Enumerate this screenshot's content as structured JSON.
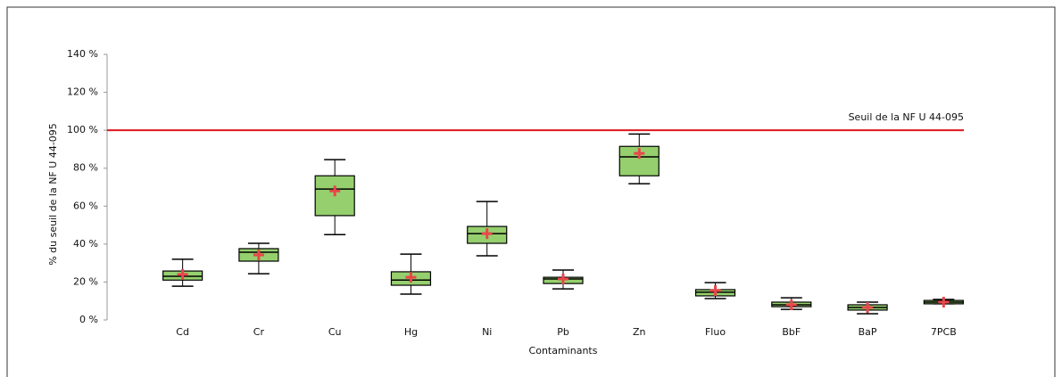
{
  "chart_data": {
    "type": "box",
    "y_label": "% du seuil de la NF U 44-095",
    "x_label": "Contaminants",
    "categories": [
      "Cd",
      "Cr",
      "Cu",
      "Hg",
      "Ni",
      "Pb",
      "Zn",
      "Fluo",
      "BbF",
      "BaP",
      "7PCB"
    ],
    "whisker_low": [
      17.8,
      24.4,
      45,
      13.6,
      33.8,
      16.4,
      71.8,
      11.3,
      5.6,
      3.3,
      8.5
    ],
    "q1": [
      21,
      31,
      55,
      18.3,
      40.4,
      19.2,
      76,
      12.7,
      7,
      5.2,
      8.5
    ],
    "median": [
      23,
      35.7,
      69,
      21,
      45.5,
      21.6,
      86,
      14.6,
      8,
      6.6,
      9.4
    ],
    "q3": [
      25.8,
      37.6,
      76,
      25.4,
      49.3,
      22.5,
      91.5,
      16,
      9.4,
      8,
      10.3
    ],
    "whisker_high": [
      32,
      40.4,
      84.5,
      34.7,
      62.4,
      26.3,
      98,
      19.7,
      11.7,
      9.4,
      10.8
    ],
    "mean": [
      24,
      34.3,
      68,
      22.5,
      45.5,
      21.6,
      87.8,
      15.5,
      8,
      6.6,
      9.4
    ],
    "box_color": "#95cf6e",
    "mean_color": "#e8474a",
    "threshold": {
      "value": 100,
      "label": "Seuil de la NF U 44-095",
      "color": "#e3141c"
    },
    "ylim": [
      0,
      140
    ],
    "yticks": [
      {
        "value": 0,
        "label": "0 %"
      },
      {
        "value": 20,
        "label": "20 %"
      },
      {
        "value": 40,
        "label": "40 %"
      },
      {
        "value": 60,
        "label": "60 %"
      },
      {
        "value": 80,
        "label": "80 %"
      },
      {
        "value": 100,
        "label": "100 %"
      },
      {
        "value": 120,
        "label": "120 %"
      },
      {
        "value": 140,
        "label": "140 %"
      }
    ]
  }
}
